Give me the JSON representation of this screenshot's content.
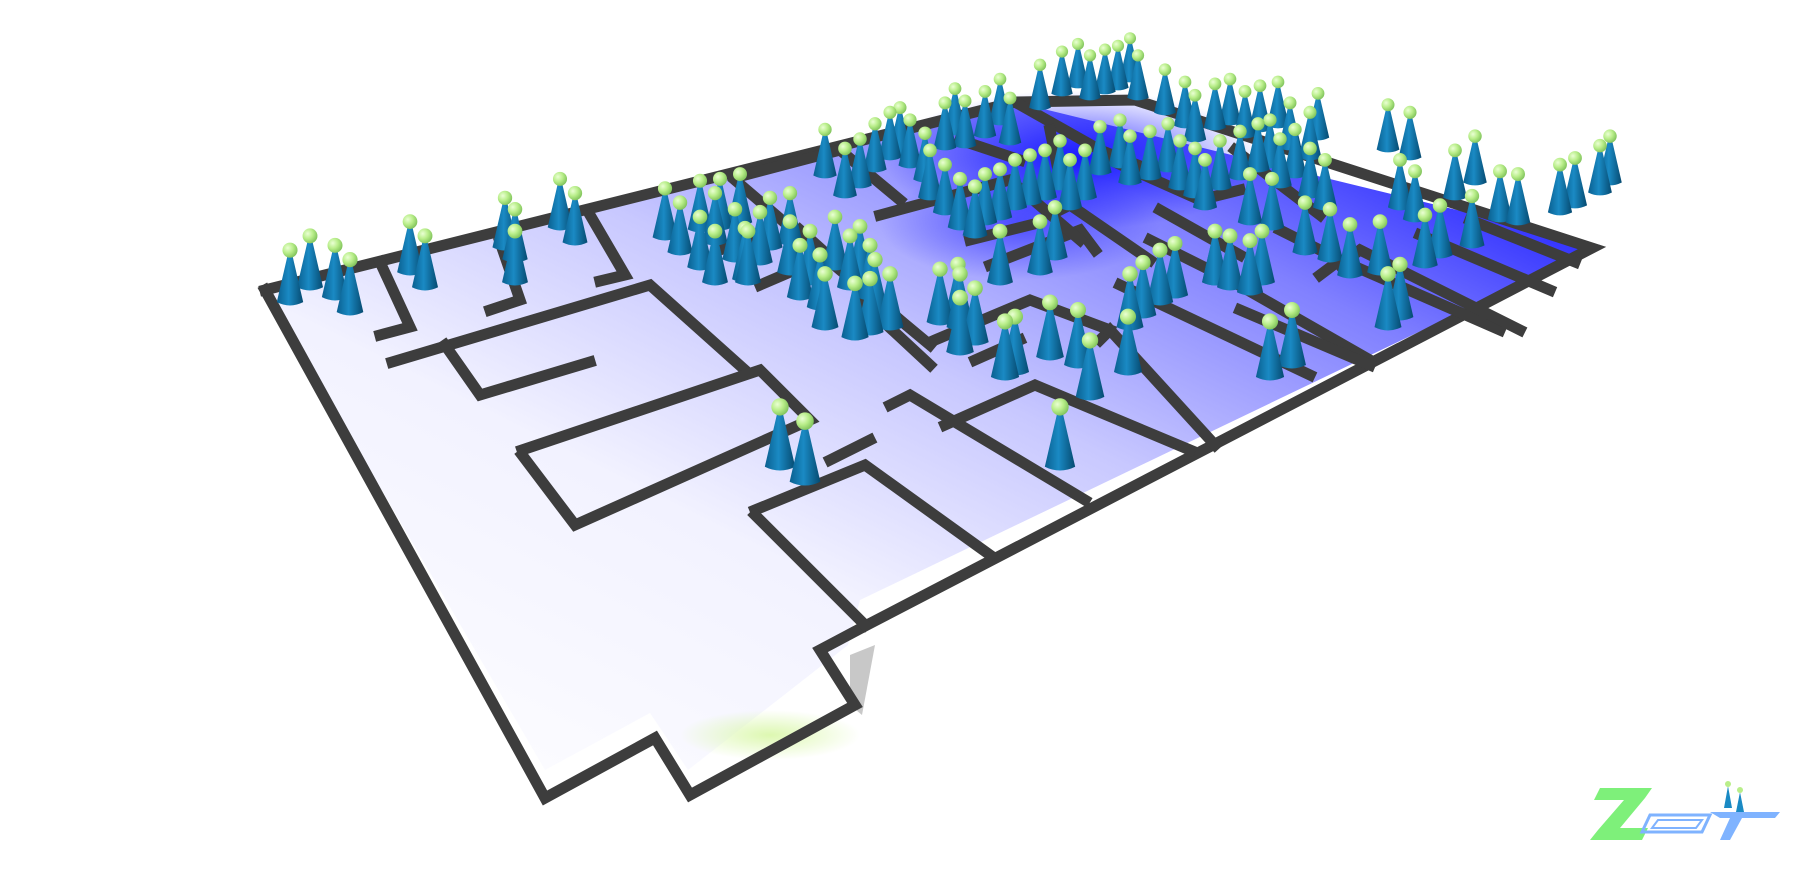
{
  "scene": {
    "description_kind": "evacuation-simulation-floorplan",
    "occupant_count": 150,
    "colors": {
      "background": "#ffffff",
      "wall": "#3d3d3d",
      "floor_dense": "#0000ff",
      "floor_light": "#ffffff",
      "exit_glow": "#d9f7a8",
      "agent_body": "#0b74a8",
      "agent_head": "#b9ee8a"
    },
    "density_map": [
      {
        "room": "north-center-block",
        "level": 0.95
      },
      {
        "room": "north-east-block",
        "level": 0.75
      },
      {
        "room": "north-west-block",
        "level": 0.35
      },
      {
        "room": "center-corridor",
        "level": 0.45
      },
      {
        "room": "south-east-rooms",
        "level": 0.55
      },
      {
        "room": "south-west-hall",
        "level": 0.05
      }
    ]
  },
  "logo": {
    "text": "ZET",
    "icon": "zet-logo-icon",
    "color": "#7ef07a"
  }
}
